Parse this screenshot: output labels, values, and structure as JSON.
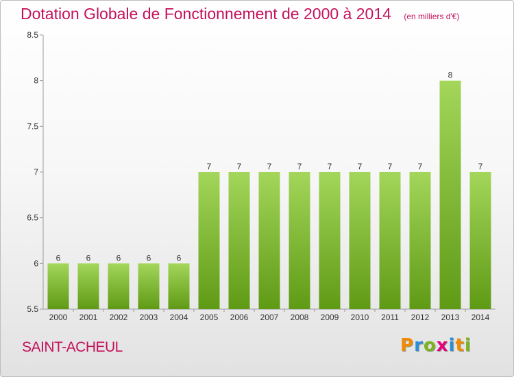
{
  "header": {
    "title": "Dotation Globale de Fonctionnement de 2000 à 2014",
    "unit": "(en milliers d'€)"
  },
  "footer": {
    "commune": "SAINT-ACHEUL",
    "logo_letters": [
      "P",
      "r",
      "o",
      "x",
      "i",
      "t",
      "i"
    ],
    "logo_colors": [
      "#f08a00",
      "#2a8fd6",
      "#7ab51d",
      "#e3007a",
      "#2a8fd6",
      "#f08a00",
      "#7ab51d"
    ]
  },
  "colors": {
    "title": "#c4115c",
    "bar_top": "#a3d65a",
    "bar_bottom": "#5f9a15",
    "axis": "#9a9a9a",
    "tick_text": "#333333"
  },
  "chart_data": {
    "type": "bar",
    "categories": [
      "2000",
      "2001",
      "2002",
      "2003",
      "2004",
      "2005",
      "2006",
      "2007",
      "2008",
      "2009",
      "2010",
      "2011",
      "2012",
      "2013",
      "2014"
    ],
    "values": [
      6,
      6,
      6,
      6,
      6,
      7,
      7,
      7,
      7,
      7,
      7,
      7,
      7,
      8,
      7
    ],
    "data_labels": [
      "6",
      "6",
      "6",
      "6",
      "6",
      "7",
      "7",
      "7",
      "7",
      "7",
      "7",
      "7",
      "7",
      "8",
      "7"
    ],
    "ylim": [
      5.5,
      8.5
    ],
    "yticks": [
      5.5,
      6,
      6.5,
      7,
      7.5,
      8,
      8.5
    ],
    "ytick_labels": [
      "5.5",
      "6",
      "6.5",
      "7",
      "7.5",
      "8",
      "8.5"
    ],
    "grid": false,
    "xlabel": "",
    "ylabel": ""
  }
}
